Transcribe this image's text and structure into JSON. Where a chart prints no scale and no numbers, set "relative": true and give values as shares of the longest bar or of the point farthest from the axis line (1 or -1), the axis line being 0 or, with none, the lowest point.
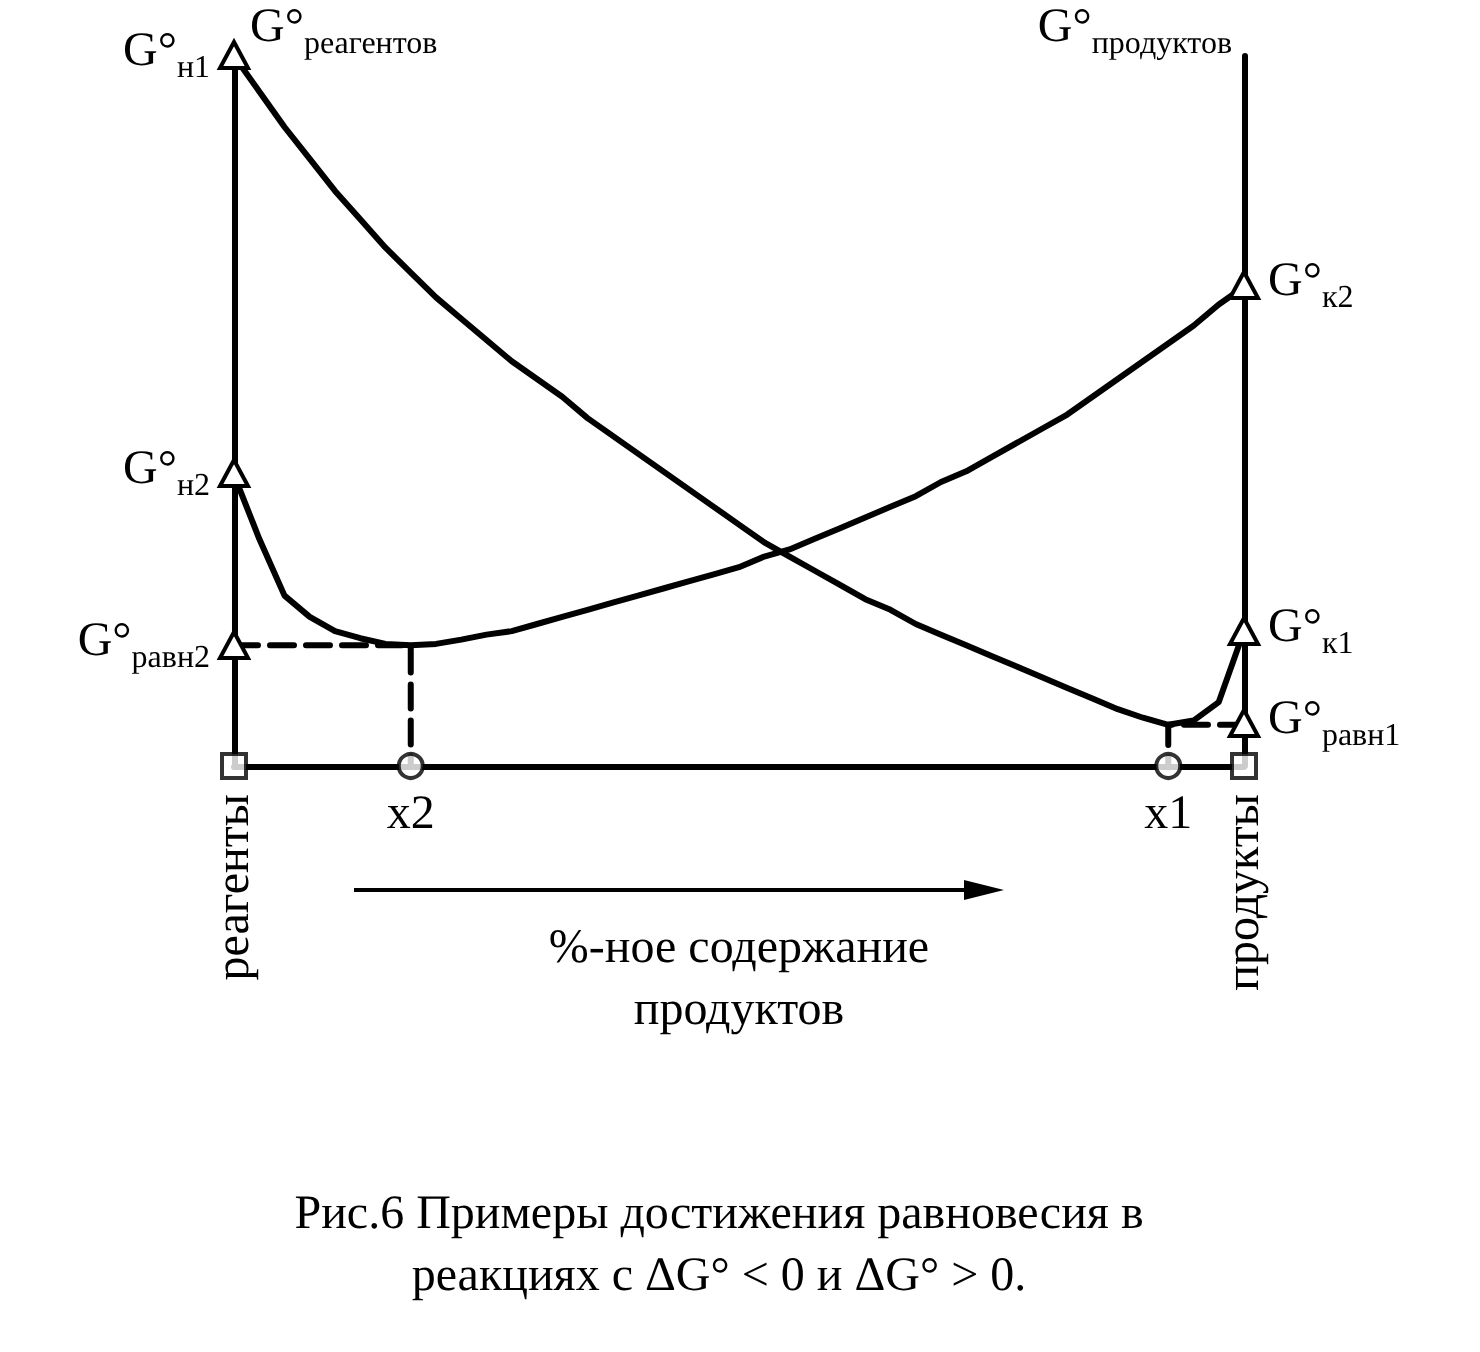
{
  "chart_data": {
    "type": "line",
    "relative": true,
    "ylabel": "G°$_{реагентов}$",
    "y2label": "G°$_{продуктов}$",
    "xlabel": "%-ное содержание продуктов",
    "categories": [
      "реагенты",
      null,
      null,
      null,
      null,
      null,
      null,
      "x2",
      null,
      null,
      null,
      null,
      null,
      null,
      null,
      null,
      null,
      null,
      null,
      null,
      null,
      null,
      null,
      null,
      null,
      null,
      null,
      null,
      null,
      null,
      null,
      null,
      null,
      null,
      null,
      null,
      null,
      "x1",
      null,
      null,
      "продукты"
    ],
    "series": [
      {
        "color": "#000000",
        "line_style": "solid",
        "values": [
          1,
          0.95,
          0.9,
          0.855,
          0.81,
          0.77,
          0.73,
          0.695,
          0.66,
          0.63,
          0.6,
          0.57,
          0.545,
          0.52,
          0.49,
          0.465,
          0.44,
          0.415,
          0.39,
          0.365,
          0.34,
          0.315,
          0.295,
          0.275,
          0.255,
          0.235,
          0.22,
          0.2,
          0.185,
          0.17,
          0.155,
          0.14,
          0.125,
          0.11,
          0.095,
          0.08,
          0.068,
          0.058,
          0.064,
          0.09,
          0.19
        ]
      },
      {
        "color": "#000000",
        "line_style": "solid",
        "values": [
          0.41,
          0.32,
          0.24,
          0.21,
          0.19,
          0.18,
          0.172,
          0.17,
          0.172,
          0.178,
          0.185,
          0.19,
          0.2,
          0.21,
          0.22,
          0.23,
          0.24,
          0.25,
          0.26,
          0.27,
          0.28,
          0.295,
          0.305,
          0.32,
          0.335,
          0.35,
          0.365,
          0.38,
          0.4,
          0.415,
          0.435,
          0.455,
          0.475,
          0.495,
          0.52,
          0.545,
          0.57,
          0.595,
          0.62,
          0.65,
          0.675
        ]
      },
      {
        "color": "#000000",
        "line_style": "dashed",
        "x": [
          "реагенты",
          "x2",
          "x2"
        ],
        "values": [
          0.17,
          0.17,
          0
        ]
      },
      {
        "color": "#000000",
        "line_style": "dashed",
        "x": [
          "продукты",
          "x1",
          "x1"
        ],
        "values": [
          0.058,
          0.058,
          0
        ]
      },
      {
        "type": "scatter",
        "color": "#000000",
        "marker": "square",
        "x": [
          "реагенты",
          "продукты"
        ],
        "values": [
          0,
          0
        ]
      },
      {
        "type": "scatter",
        "color": "#000000",
        "marker": "circle",
        "x": [
          "x2",
          "x1"
        ],
        "values": [
          0,
          0
        ]
      }
    ],
    "marker": "none",
    "annotations": [
      {
        "text": "G°$_{н1}$",
        "x": "реагенты",
        "y": 1
      },
      {
        "text": "G°$_{н2}$",
        "x": "реагенты",
        "y": 0.41
      },
      {
        "text": "G°$_{равн2}$",
        "x": "реагенты",
        "y": 0.17
      },
      {
        "text": "G°$_{к2}$",
        "x": "продукты",
        "y": 0.675
      },
      {
        "text": "G°$_{к1}$",
        "x": "продукты",
        "y": 0.19
      },
      {
        "text": "G°$_{равн1}$",
        "x": "продукты",
        "y": 0.058
      },
      "Рис.6  Примеры достижения равновесия в реакциях с ΔG° < 0  и  ΔG° > 0."
    ]
  }
}
